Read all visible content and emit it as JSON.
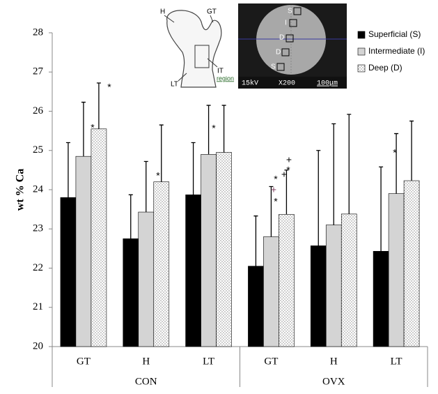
{
  "chart_data": {
    "type": "bar",
    "y_label": "wt % Ca",
    "categories": [
      "GT",
      "H",
      "LT",
      "GT",
      "H",
      "LT"
    ],
    "groups": [
      "CON",
      "OVX"
    ],
    "series": [
      {
        "name": "Superficial (S)",
        "color": "#000000",
        "values": [
          23.8,
          22.75,
          23.87,
          22.05,
          22.57,
          22.43
        ],
        "errors": [
          1.4,
          1.12,
          1.33,
          1.28,
          2.43,
          2.15
        ]
      },
      {
        "name": "Intermediate (I)",
        "color": "#d4d4d4",
        "values": [
          24.85,
          23.43,
          24.9,
          22.8,
          23.1,
          23.9
        ],
        "errors": [
          1.38,
          1.29,
          1.25,
          1.28,
          2.58,
          1.53
        ]
      },
      {
        "name": "Deep (D)",
        "color": "dotted",
        "values": [
          25.55,
          24.2,
          24.95,
          23.37,
          23.38,
          24.23
        ],
        "errors": [
          1.17,
          1.45,
          1.2,
          1.13,
          2.54,
          1.52
        ]
      }
    ],
    "ylim": [
      20,
      28
    ],
    "yticks": [
      20,
      21,
      22,
      23,
      24,
      25,
      26,
      27,
      28
    ],
    "legend": "right",
    "annotations": [
      "*",
      "*",
      "*",
      "*",
      "*",
      "*",
      "*",
      "+",
      "+",
      "+",
      "*"
    ],
    "inset": {
      "bone_labels": [
        "H",
        "GT",
        "IT",
        "region",
        "LT"
      ],
      "sem_labels": [
        "S",
        "I",
        "D",
        "D",
        "S"
      ],
      "sem_scale": [
        "15kV",
        "X200",
        "100μm"
      ]
    }
  }
}
